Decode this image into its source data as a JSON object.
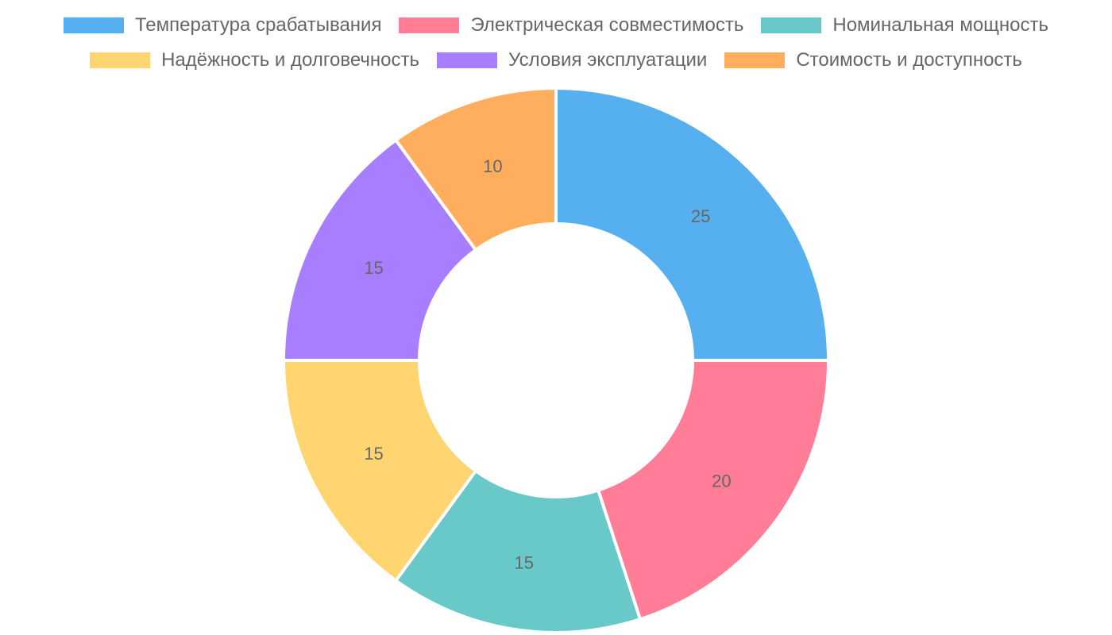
{
  "chart_data": {
    "type": "pie",
    "variant": "doughnut",
    "title": "",
    "categories": [
      "Температура срабатывания",
      "Электрическая совместимость",
      "Номинальная мощность",
      "Надёжность и долговечность",
      "Условия эксплуатации",
      "Стоимость и доступность"
    ],
    "values": [
      25,
      20,
      15,
      15,
      15,
      10
    ],
    "colors": [
      "#56b0ef",
      "#ff7d97",
      "#68c9c8",
      "#ffd572",
      "#a77eff",
      "#ffae5d"
    ],
    "legend_position": "top",
    "show_value_labels": true
  },
  "legend": {
    "rows": [
      [
        {
          "label": "Температура срабатывания",
          "color": "#56b0ef"
        },
        {
          "label": "Электрическая совместимость",
          "color": "#ff7d97"
        },
        {
          "label": "Номинальная мощность",
          "color": "#68c9c8"
        }
      ],
      [
        {
          "label": "Надёжность и долговечность",
          "color": "#ffd572"
        },
        {
          "label": "Условия эксплуатации",
          "color": "#a77eff"
        },
        {
          "label": "Стоимость и доступность",
          "color": "#ffae5d"
        }
      ]
    ]
  }
}
